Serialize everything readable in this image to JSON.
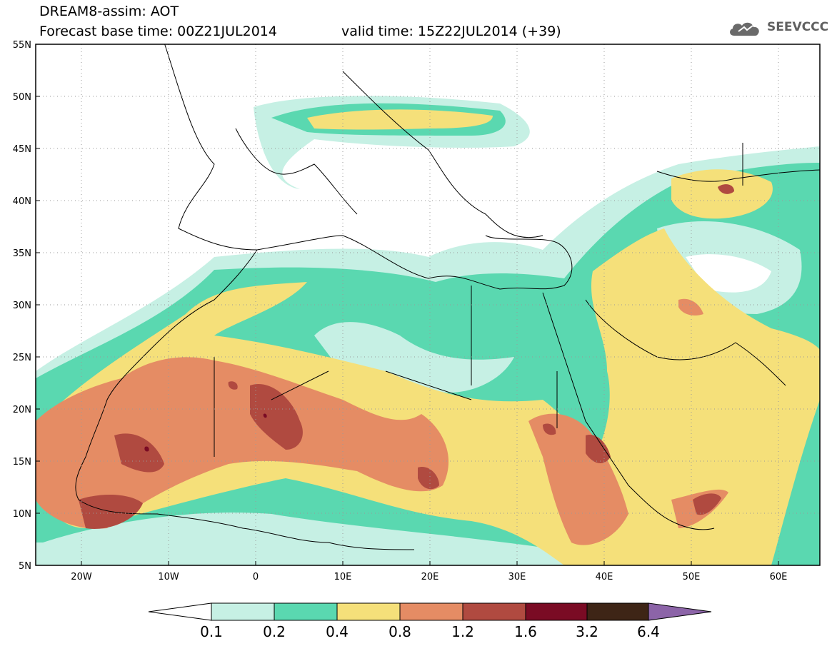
{
  "header": {
    "title": "DREAM8-assim: AOT",
    "base_time": "Forecast base time: 00Z21JUL2014",
    "valid_time": "valid time: 15Z22JUL2014 (+39)"
  },
  "logo": {
    "icon": "cloud-logo-icon",
    "text": "SEEVCCC"
  },
  "map": {
    "region": "North Africa, Mediterranean, Middle East",
    "lat_range": [
      5,
      55
    ],
    "lon_range": [
      -25,
      65
    ],
    "lat_labels": [
      "55N",
      "50N",
      "45N",
      "40N",
      "35N",
      "30N",
      "25N",
      "20N",
      "15N",
      "10N",
      "5N"
    ],
    "lon_labels": [
      "20W",
      "10W",
      "0",
      "10E",
      "20E",
      "30E",
      "40E",
      "50E",
      "60E"
    ],
    "gridlines": "dotted"
  },
  "colorbar": {
    "levels": [
      "0.1",
      "0.2",
      "0.4",
      "0.8",
      "1.2",
      "1.6",
      "3.2",
      "6.4"
    ],
    "colors": [
      "#ffffff",
      "#c6f0e4",
      "#5ad8b0",
      "#f5e07a",
      "#e58c64",
      "#b04a40",
      "#7a0b24",
      "#3e2516",
      "#8c64a8"
    ]
  }
}
